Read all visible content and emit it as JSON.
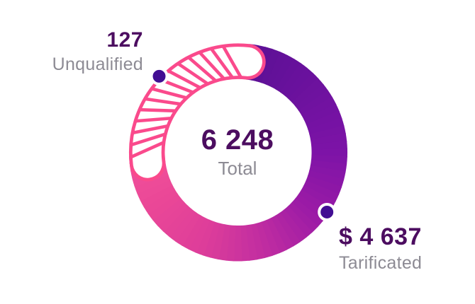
{
  "chart_data": {
    "type": "donut",
    "title": "",
    "legend_position": "callout-labels",
    "center": {
      "value": "6 248",
      "label": "Total"
    },
    "callouts": [
      {
        "value": "127",
        "label": "Unqualified",
        "marker_angle": 314,
        "marker_radius": 155
      },
      {
        "value": "$ 4 637",
        "label": "Tarificated",
        "marker_angle": 124,
        "marker_radius": 151
      }
    ],
    "segments": [
      {
        "label": "Tarificated",
        "value": 4637,
        "display": "$ 4 637",
        "style": "gradient",
        "start_angle": 6,
        "end_angle": 268,
        "gradient_stops": [
          [
            6,
            "#5b1095"
          ],
          [
            90,
            "#7d13a7"
          ],
          [
            130,
            "#9c1ba6"
          ],
          [
            165,
            "#c02da1"
          ],
          [
            200,
            "#dd3d9a"
          ],
          [
            240,
            "#eb4897"
          ],
          [
            268,
            "#f0509b"
          ]
        ]
      },
      {
        "label": "Unqualified",
        "value": 127,
        "display": "127",
        "style": "hatched",
        "start_angle": 263,
        "end_angle": 366,
        "color": "#fa4a8c",
        "fill": "#ffffff"
      }
    ],
    "colors": {
      "marker": "#420e93",
      "marker_border": "#ffffff",
      "value_text": "#4c0d60",
      "label_text": "#8d8b94",
      "background": "#ffffff"
    }
  }
}
